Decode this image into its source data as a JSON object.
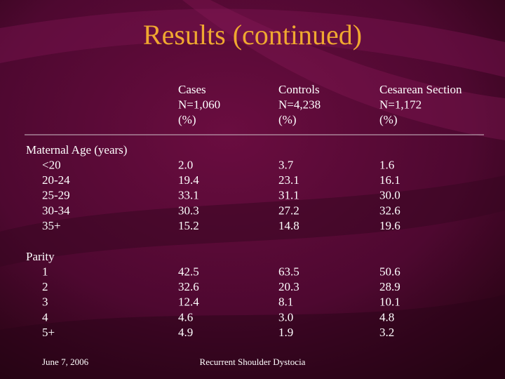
{
  "title": "Results (continued)",
  "table": {
    "columns": [
      {
        "lines": [
          "Cases",
          "N=1,060",
          "(%)"
        ]
      },
      {
        "lines": [
          "Controls",
          "N=4,238",
          "(%)"
        ]
      },
      {
        "lines": [
          "Cesarean Section",
          "N=1,172",
          "(%)"
        ]
      }
    ],
    "groups": [
      {
        "label": "Maternal Age (years)",
        "rows": [
          {
            "label": "<20",
            "values": [
              "2.0",
              "3.7",
              "1.6"
            ]
          },
          {
            "label": "20-24",
            "values": [
              "19.4",
              "23.1",
              "16.1"
            ]
          },
          {
            "label": "25-29",
            "values": [
              "33.1",
              "31.1",
              "30.0"
            ]
          },
          {
            "label": "30-34",
            "values": [
              "30.3",
              "27.2",
              "32.6"
            ]
          },
          {
            "label": "35+",
            "values": [
              "15.2",
              "14.8",
              "19.6"
            ]
          }
        ]
      },
      {
        "label": "Parity",
        "rows": [
          {
            "label": "1",
            "values": [
              "42.5",
              "63.5",
              "50.6"
            ]
          },
          {
            "label": "2",
            "values": [
              "32.6",
              "20.3",
              "28.9"
            ]
          },
          {
            "label": "3",
            "values": [
              "12.4",
              "8.1",
              "10.1"
            ]
          },
          {
            "label": "4",
            "values": [
              "4.6",
              "3.0",
              "4.8"
            ]
          },
          {
            "label": "5+",
            "values": [
              "4.9",
              "1.9",
              "3.2"
            ]
          }
        ]
      }
    ]
  },
  "footer": {
    "date": "June 7, 2006",
    "text": "Recurrent Shoulder Dystocia"
  }
}
